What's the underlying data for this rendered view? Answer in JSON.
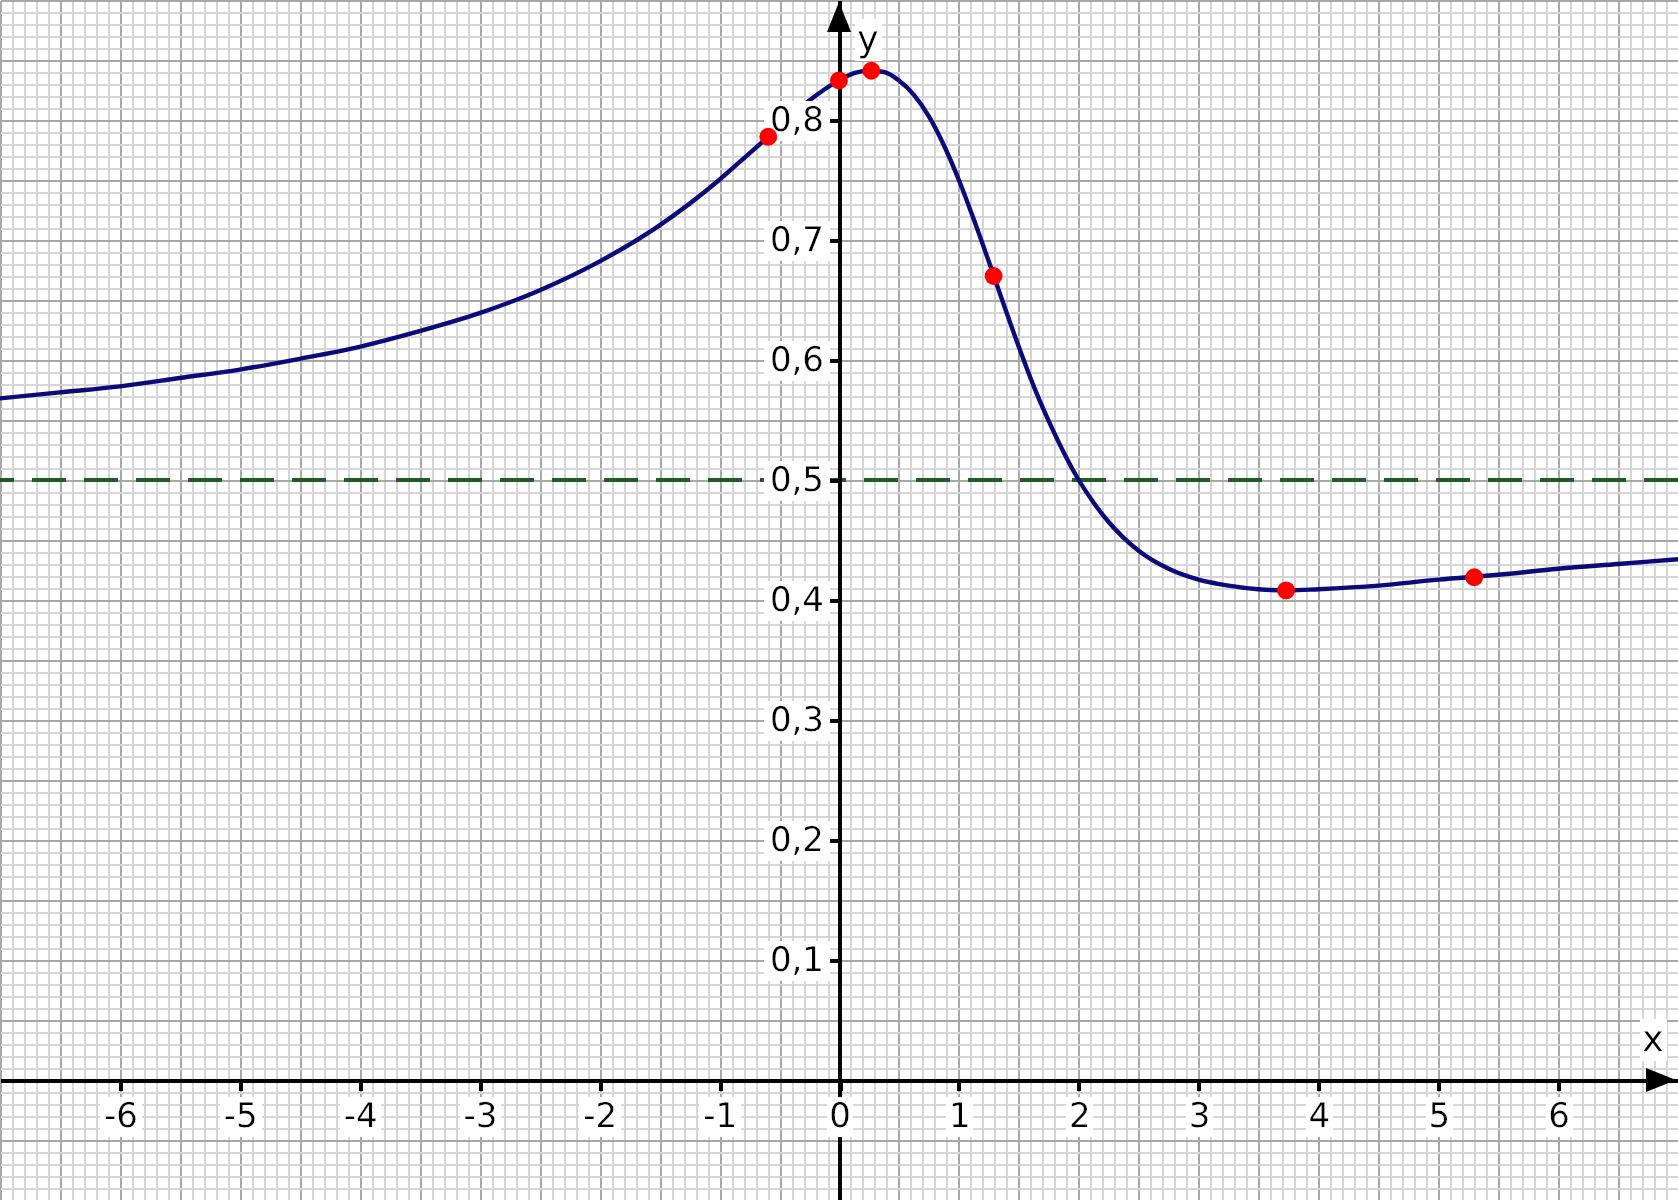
{
  "chart_data": {
    "type": "line",
    "xlabel": "x",
    "ylabel": "y",
    "xlim": [
      -7,
      7
    ],
    "ylim": [
      -0.1,
      0.9
    ],
    "xticks": [
      -6,
      -5,
      -4,
      -3,
      -2,
      -1,
      0,
      1,
      2,
      3,
      4,
      5,
      6
    ],
    "yticks": [
      {
        "value": 0.1,
        "label": "0,1"
      },
      {
        "value": 0.2,
        "label": "0,2"
      },
      {
        "value": 0.3,
        "label": "0,3"
      },
      {
        "value": 0.4,
        "label": "0,4"
      },
      {
        "value": 0.5,
        "label": "0,5"
      },
      {
        "value": 0.6,
        "label": "0,6"
      },
      {
        "value": 0.7,
        "label": "0,7"
      },
      {
        "value": 0.8,
        "label": "0,8"
      }
    ],
    "grid": true,
    "series": [
      {
        "type": "line",
        "color": "#0a0a7a",
        "x": [
          -7,
          -6.5,
          -6,
          -5.5,
          -5,
          -4.5,
          -4,
          -3.5,
          -3,
          -2.5,
          -2,
          -1.5,
          -1,
          -0.75,
          -0.5,
          -0.25,
          0,
          0.125,
          0.25,
          0.375,
          0.5,
          0.625,
          0.75,
          0.875,
          1,
          1.125,
          1.25,
          1.375,
          1.5,
          1.625,
          1.75,
          1.875,
          2,
          2.125,
          2.25,
          2.5,
          2.75,
          3,
          3.25,
          3.5,
          3.75,
          4,
          4.5,
          5,
          5.5,
          6,
          6.5,
          7
        ],
        "values": [
          0.568,
          0.573,
          0.578,
          0.585,
          0.592,
          0.601,
          0.611,
          0.624,
          0.639,
          0.658,
          0.682,
          0.712,
          0.75,
          0.772,
          0.794,
          0.816,
          0.833,
          0.839,
          0.841,
          0.84,
          0.833,
          0.821,
          0.803,
          0.779,
          0.75,
          0.717,
          0.682,
          0.646,
          0.611,
          0.578,
          0.549,
          0.523,
          0.5,
          0.481,
          0.465,
          0.441,
          0.426,
          0.417,
          0.412,
          0.409,
          0.408,
          0.409,
          0.412,
          0.417,
          0.421,
          0.426,
          0.43,
          0.434
        ]
      },
      {
        "type": "scatter",
        "color": "#ff0000",
        "marker": "circle",
        "x": [
          -0.59,
          0,
          0.27,
          1.29,
          3.73,
          5.3
        ],
        "values": [
          0.786,
          0.833,
          0.841,
          0.67,
          0.408,
          0.419
        ]
      }
    ],
    "ref_lines": [
      {
        "axis": "y",
        "value": 0.5,
        "color": "#1e5e1e",
        "line_style": "dashed"
      }
    ]
  }
}
